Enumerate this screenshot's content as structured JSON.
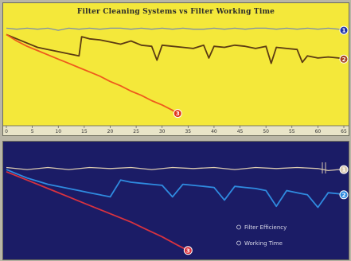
{
  "charts": {
    "top": {
      "title": "Filter Cleaning Systems vs Filter Working Time",
      "x_ticks": [
        "0",
        "5",
        "10",
        "15",
        "20",
        "25",
        "30",
        "35",
        "40",
        "45",
        "50",
        "55",
        "60",
        "65"
      ],
      "colors": {
        "background": "#f4e83a",
        "series_1": "#7d8fa8",
        "series_2": "#5b3a12",
        "series_3": "#ee5a1c",
        "marker_1": "#2133a8",
        "marker_2": "#a8421d",
        "marker_3": "#e0361c"
      },
      "markers": [
        "1",
        "2",
        "3"
      ]
    },
    "bottom": {
      "legend": [
        "Filter Efficiency",
        "Working Time"
      ],
      "colors": {
        "background": "#1b1c66",
        "series_1": "#d9c9b0",
        "series_2": "#2f8be0",
        "series_3": "#d8323f"
      },
      "markers": [
        "1",
        "2",
        "3"
      ]
    }
  },
  "chart_data": [
    {
      "type": "line",
      "title": "Filter Cleaning Systems vs Filter Working Time",
      "xlim": [
        0,
        65
      ],
      "ylim": [
        0,
        100
      ],
      "grid": false,
      "series": [
        {
          "x": [
            0,
            2,
            4,
            6,
            8,
            10,
            12,
            14,
            16,
            18,
            20,
            22,
            24,
            26,
            28,
            30,
            32,
            34,
            36,
            38,
            40,
            42,
            44,
            46,
            48,
            50,
            52,
            54,
            56,
            58,
            60,
            62,
            64,
            65
          ],
          "values": [
            90,
            89,
            90,
            89,
            90,
            88,
            90,
            89,
            90,
            89,
            90,
            90,
            89,
            90,
            89,
            90,
            89,
            90,
            89,
            89,
            90,
            89,
            90,
            89,
            90,
            90,
            89,
            90,
            89,
            90,
            89,
            90,
            89,
            88
          ]
        },
        {
          "x": [
            0,
            2,
            4,
            6,
            8,
            10,
            12,
            14,
            14.5,
            16,
            18,
            20,
            22,
            24,
            26,
            28,
            29,
            30,
            32,
            34,
            36,
            38,
            39,
            40,
            42,
            44,
            46,
            48,
            50,
            51,
            52,
            54,
            56,
            57,
            58,
            60,
            62,
            64,
            65
          ],
          "values": [
            84,
            80,
            76,
            72,
            70,
            68,
            66,
            64,
            82,
            80,
            79,
            77,
            75,
            78,
            74,
            73,
            60,
            74,
            73,
            72,
            71,
            74,
            62,
            73,
            72,
            74,
            73,
            71,
            73,
            57,
            72,
            71,
            70,
            58,
            64,
            62,
            63,
            62,
            61
          ]
        },
        {
          "x": [
            0,
            2,
            4,
            6,
            8,
            10,
            12,
            14,
            16,
            18,
            20,
            22,
            24,
            26,
            28,
            30,
            32,
            33
          ],
          "values": [
            84,
            78,
            73,
            69,
            65,
            61,
            57,
            53,
            49,
            45,
            40,
            36,
            31,
            27,
            22,
            18,
            13,
            10
          ]
        }
      ]
    },
    {
      "type": "line",
      "xlim": [
        0,
        65
      ],
      "ylim": [
        0,
        100
      ],
      "grid": false,
      "legend": [
        "Filter Efficiency",
        "Working Time"
      ],
      "series": [
        {
          "x": [
            0,
            4,
            8,
            12,
            16,
            20,
            24,
            28,
            32,
            36,
            40,
            44,
            48,
            52,
            56,
            60,
            62,
            64,
            65
          ],
          "values": [
            86,
            84,
            86,
            84,
            86,
            85,
            86,
            84,
            86,
            85,
            86,
            84,
            86,
            85,
            86,
            85,
            83,
            84,
            84
          ]
        },
        {
          "x": [
            0,
            2,
            4,
            6,
            8,
            10,
            12,
            14,
            16,
            18,
            20,
            22,
            24,
            26,
            28,
            30,
            32,
            34,
            36,
            38,
            40,
            42,
            44,
            46,
            48,
            50,
            52,
            54,
            56,
            58,
            60,
            62,
            64,
            65
          ],
          "values": [
            84,
            80,
            76,
            73,
            70,
            68,
            66,
            64,
            62,
            60,
            58,
            74,
            72,
            71,
            70,
            69,
            58,
            70,
            69,
            68,
            67,
            55,
            68,
            67,
            66,
            64,
            49,
            64,
            62,
            60,
            48,
            62,
            61,
            60
          ]
        },
        {
          "x": [
            0,
            3,
            6,
            9,
            12,
            15,
            18,
            21,
            24,
            27,
            30,
            33,
            35
          ],
          "values": [
            82,
            76,
            70,
            64,
            58,
            52,
            46,
            40,
            34,
            27,
            20,
            12,
            7
          ]
        }
      ]
    }
  ]
}
